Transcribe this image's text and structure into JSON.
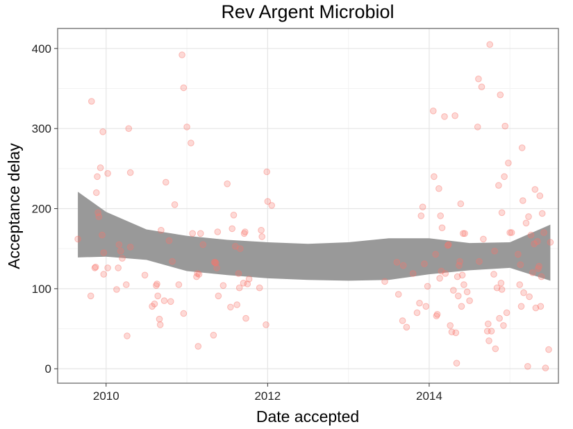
{
  "chart_data": {
    "type": "scatter",
    "title": "Rev Argent Microbiol",
    "xlabel": "Date accepted",
    "ylabel": "Acceptance delay",
    "x_ticks": [
      {
        "label": "2010",
        "value": 2010
      },
      {
        "label": "2012",
        "value": 2012
      },
      {
        "label": "2014",
        "value": 2014
      }
    ],
    "y_ticks": [
      0,
      100,
      200,
      300,
      400
    ],
    "xlim": [
      2009.4,
      2015.6
    ],
    "ylim": [
      -18,
      425
    ],
    "grid": true,
    "point_color": "#f8766d",
    "band_color": "#999999",
    "points": [
      [
        2009.65,
        162
      ],
      [
        2009.82,
        334
      ],
      [
        2009.81,
        91
      ],
      [
        2009.86,
        126
      ],
      [
        2009.87,
        127
      ],
      [
        2009.88,
        220
      ],
      [
        2009.89,
        240
      ],
      [
        2009.9,
        195
      ],
      [
        2009.91,
        190
      ],
      [
        2009.93,
        251
      ],
      [
        2009.95,
        167
      ],
      [
        2009.96,
        296
      ],
      [
        2009.97,
        145
      ],
      [
        2009.97,
        118
      ],
      [
        2010.02,
        244
      ],
      [
        2010.02,
        126
      ],
      [
        2010.13,
        99
      ],
      [
        2010.15,
        126
      ],
      [
        2010.16,
        155
      ],
      [
        2010.18,
        147
      ],
      [
        2010.2,
        138
      ],
      [
        2010.25,
        105
      ],
      [
        2010.26,
        41
      ],
      [
        2010.28,
        300
      ],
      [
        2010.3,
        245
      ],
      [
        2010.3,
        152
      ],
      [
        2010.48,
        117
      ],
      [
        2010.57,
        78
      ],
      [
        2010.6,
        81
      ],
      [
        2010.62,
        104
      ],
      [
        2010.63,
        106
      ],
      [
        2010.64,
        91
      ],
      [
        2010.66,
        62
      ],
      [
        2010.67,
        55
      ],
      [
        2010.68,
        173
      ],
      [
        2010.72,
        85
      ],
      [
        2010.74,
        233
      ],
      [
        2010.78,
        160
      ],
      [
        2010.8,
        84
      ],
      [
        2010.82,
        134
      ],
      [
        2010.85,
        205
      ],
      [
        2010.9,
        105
      ],
      [
        2010.94,
        392
      ],
      [
        2010.96,
        351
      ],
      [
        2010.96,
        69
      ],
      [
        2011.0,
        302
      ],
      [
        2011.05,
        282
      ],
      [
        2011.07,
        169
      ],
      [
        2011.12,
        115
      ],
      [
        2011.13,
        119
      ],
      [
        2011.14,
        28
      ],
      [
        2011.15,
        118
      ],
      [
        2011.17,
        169
      ],
      [
        2011.2,
        155
      ],
      [
        2011.33,
        42
      ],
      [
        2011.34,
        133
      ],
      [
        2011.35,
        133
      ],
      [
        2011.36,
        132
      ],
      [
        2011.37,
        126
      ],
      [
        2011.38,
        171
      ],
      [
        2011.39,
        91
      ],
      [
        2011.45,
        104
      ],
      [
        2011.5,
        231
      ],
      [
        2011.54,
        77
      ],
      [
        2011.56,
        175
      ],
      [
        2011.58,
        192
      ],
      [
        2011.6,
        153
      ],
      [
        2011.62,
        80
      ],
      [
        2011.64,
        119
      ],
      [
        2011.65,
        101
      ],
      [
        2011.66,
        150
      ],
      [
        2011.7,
        107
      ],
      [
        2011.71,
        169
      ],
      [
        2011.72,
        171
      ],
      [
        2011.73,
        63
      ],
      [
        2011.75,
        106
      ],
      [
        2011.77,
        112
      ],
      [
        2011.9,
        101
      ],
      [
        2011.92,
        173
      ],
      [
        2011.93,
        165
      ],
      [
        2011.98,
        55
      ],
      [
        2011.99,
        246
      ],
      [
        2012.0,
        209
      ],
      [
        2012.05,
        204
      ],
      [
        2013.45,
        109
      ],
      [
        2013.6,
        133
      ],
      [
        2013.62,
        93
      ],
      [
        2013.67,
        60
      ],
      [
        2013.68,
        129
      ],
      [
        2013.72,
        52
      ],
      [
        2013.8,
        119
      ],
      [
        2013.85,
        70
      ],
      [
        2013.88,
        82
      ],
      [
        2013.9,
        191
      ],
      [
        2013.92,
        202
      ],
      [
        2013.94,
        131
      ],
      [
        2013.96,
        78
      ],
      [
        2013.98,
        103
      ],
      [
        2014.05,
        322
      ],
      [
        2014.06,
        240
      ],
      [
        2014.08,
        143
      ],
      [
        2014.09,
        66
      ],
      [
        2014.1,
        68
      ],
      [
        2014.12,
        225
      ],
      [
        2014.13,
        113
      ],
      [
        2014.14,
        191
      ],
      [
        2014.15,
        122
      ],
      [
        2014.16,
        176
      ],
      [
        2014.19,
        315
      ],
      [
        2014.2,
        119
      ],
      [
        2014.23,
        154
      ],
      [
        2014.24,
        155
      ],
      [
        2014.26,
        54
      ],
      [
        2014.28,
        46
      ],
      [
        2014.3,
        98
      ],
      [
        2014.32,
        316
      ],
      [
        2014.33,
        45
      ],
      [
        2014.34,
        7
      ],
      [
        2014.35,
        115
      ],
      [
        2014.36,
        91
      ],
      [
        2014.37,
        129
      ],
      [
        2014.38,
        134
      ],
      [
        2014.39,
        206
      ],
      [
        2014.4,
        78
      ],
      [
        2014.41,
        117
      ],
      [
        2014.42,
        169
      ],
      [
        2014.43,
        105
      ],
      [
        2014.44,
        169
      ],
      [
        2014.47,
        96
      ],
      [
        2014.5,
        85
      ],
      [
        2014.6,
        302
      ],
      [
        2014.61,
        362
      ],
      [
        2014.62,
        134
      ],
      [
        2014.65,
        352
      ],
      [
        2014.67,
        162
      ],
      [
        2014.72,
        47
      ],
      [
        2014.73,
        56
      ],
      [
        2014.74,
        35
      ],
      [
        2014.75,
        405
      ],
      [
        2014.77,
        47
      ],
      [
        2014.8,
        118
      ],
      [
        2014.81,
        147
      ],
      [
        2014.82,
        25
      ],
      [
        2014.84,
        101
      ],
      [
        2014.86,
        229
      ],
      [
        2014.87,
        63
      ],
      [
        2014.88,
        342
      ],
      [
        2014.89,
        107
      ],
      [
        2014.9,
        195
      ],
      [
        2014.9,
        99
      ],
      [
        2014.92,
        54
      ],
      [
        2014.93,
        240
      ],
      [
        2014.94,
        303
      ],
      [
        2014.96,
        70
      ],
      [
        2014.98,
        257
      ],
      [
        2015.0,
        170
      ],
      [
        2015.02,
        170
      ],
      [
        2015.1,
        143
      ],
      [
        2015.12,
        105
      ],
      [
        2015.13,
        130
      ],
      [
        2015.14,
        78
      ],
      [
        2015.15,
        276
      ],
      [
        2015.16,
        210
      ],
      [
        2015.17,
        95
      ],
      [
        2015.2,
        182
      ],
      [
        2015.22,
        3
      ],
      [
        2015.23,
        190
      ],
      [
        2015.24,
        90
      ],
      [
        2015.26,
        167
      ],
      [
        2015.28,
        120
      ],
      [
        2015.3,
        156
      ],
      [
        2015.31,
        224
      ],
      [
        2015.32,
        76
      ],
      [
        2015.34,
        159
      ],
      [
        2015.35,
        125
      ],
      [
        2015.36,
        128
      ],
      [
        2015.37,
        216
      ],
      [
        2015.38,
        78
      ],
      [
        2015.39,
        115
      ],
      [
        2015.4,
        194
      ],
      [
        2015.42,
        170
      ],
      [
        2015.44,
        1
      ],
      [
        2015.48,
        24
      ],
      [
        2015.5,
        158
      ]
    ],
    "smooth_band": {
      "x": [
        2009.65,
        2010.0,
        2010.5,
        2011.0,
        2011.5,
        2012.0,
        2012.5,
        2013.0,
        2013.5,
        2014.0,
        2014.5,
        2015.0,
        2015.5
      ],
      "upper": [
        221,
        196,
        174,
        166,
        161,
        158,
        156,
        158,
        163,
        163,
        157,
        158,
        180
      ],
      "lower": [
        139,
        140,
        136,
        122,
        117,
        113,
        111,
        110,
        111,
        118,
        123,
        126,
        110
      ]
    }
  }
}
